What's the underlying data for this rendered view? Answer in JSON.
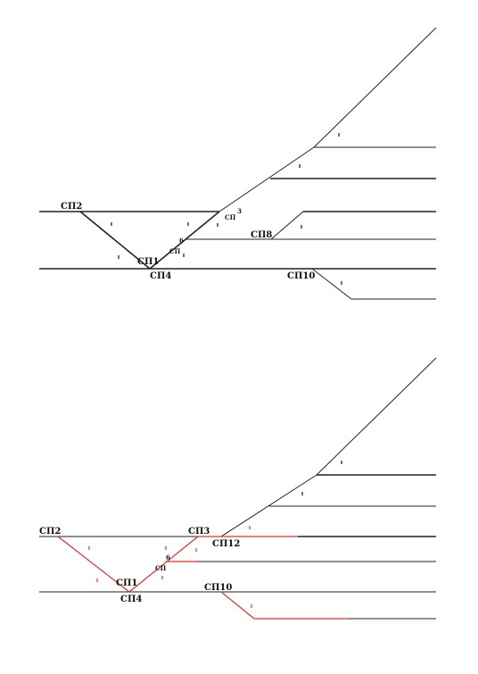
{
  "diagram_top": {
    "labels": {
      "sp2": "СП2",
      "sp1": "СП1",
      "sp4": "СП4",
      "sp3_text": "СП",
      "sp3_num": "3",
      "sp6_text": "СП",
      "sp6_num": "6",
      "sp8": "СП8",
      "sp10": "СП10"
    }
  },
  "diagram_bottom": {
    "labels": {
      "sp2": "СП2",
      "sp1": "СП1",
      "sp4": "СП4",
      "sp3": "СП3",
      "sp12": "СП12",
      "sp6_text": "СП",
      "sp6_num": "6",
      "sp10": "СП10"
    }
  },
  "colors": {
    "track": "#222222",
    "route_highlight": "#e0312f",
    "background": "#ffffff"
  }
}
